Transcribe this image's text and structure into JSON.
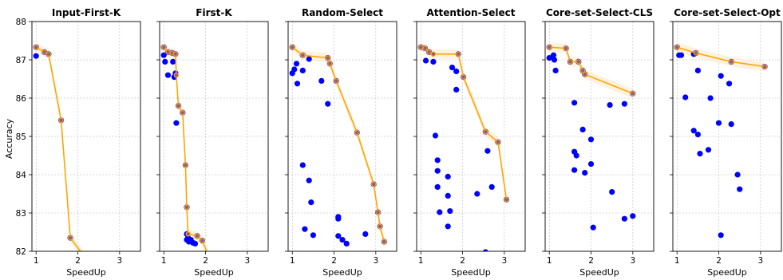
{
  "chart_data": {
    "type": "scatter",
    "ylabel": "Accuracy",
    "xlabel": "SpeedUp",
    "ylim": [
      82,
      88
    ],
    "xlim": [
      0.9,
      3.5
    ],
    "yticks": [
      82,
      83,
      84,
      85,
      86,
      87,
      88
    ],
    "xticks": [
      1,
      2,
      3
    ],
    "grid": true,
    "colors": {
      "points": "#0000ff",
      "frontier": "#ffa500",
      "band": "#fdebd0"
    },
    "panels": [
      {
        "title": "Input-First-K",
        "points": [
          [
            1.0,
            87.33
          ],
          [
            1.0,
            87.1
          ],
          [
            1.2,
            87.2
          ],
          [
            1.3,
            87.15
          ],
          [
            1.6,
            85.42
          ],
          [
            1.82,
            82.35
          ]
        ],
        "frontier": [
          [
            1.0,
            87.33
          ],
          [
            1.2,
            87.2
          ],
          [
            1.3,
            87.15
          ],
          [
            1.6,
            85.42
          ],
          [
            1.82,
            82.35
          ],
          [
            2.2,
            81.8
          ]
        ]
      },
      {
        "title": "First-K",
        "points": [
          [
            1.0,
            87.33
          ],
          [
            1.0,
            87.12
          ],
          [
            1.03,
            86.95
          ],
          [
            1.1,
            87.2
          ],
          [
            1.2,
            87.18
          ],
          [
            1.22,
            86.95
          ],
          [
            1.1,
            86.6
          ],
          [
            1.25,
            86.55
          ],
          [
            1.28,
            86.65
          ],
          [
            1.28,
            87.15
          ],
          [
            1.3,
            85.35
          ],
          [
            1.35,
            85.8
          ],
          [
            1.45,
            85.62
          ],
          [
            1.52,
            84.25
          ],
          [
            1.55,
            83.15
          ],
          [
            1.55,
            82.45
          ],
          [
            1.55,
            82.3
          ],
          [
            1.6,
            82.25
          ],
          [
            1.65,
            82.3
          ],
          [
            1.58,
            82.35
          ],
          [
            1.8,
            82.4
          ],
          [
            1.92,
            82.28
          ],
          [
            1.75,
            82.2
          ],
          [
            1.7,
            82.22
          ]
        ],
        "frontier": [
          [
            1.0,
            87.33
          ],
          [
            1.1,
            87.2
          ],
          [
            1.2,
            87.18
          ],
          [
            1.28,
            87.15
          ],
          [
            1.3,
            86.6
          ],
          [
            1.35,
            85.8
          ],
          [
            1.45,
            85.62
          ],
          [
            1.52,
            84.25
          ],
          [
            1.55,
            83.15
          ],
          [
            1.58,
            82.45
          ],
          [
            1.8,
            82.4
          ],
          [
            1.92,
            82.28
          ],
          [
            2.1,
            81.8
          ]
        ]
      },
      {
        "title": "Random-Select",
        "points": [
          [
            1.0,
            87.33
          ],
          [
            1.0,
            86.65
          ],
          [
            1.05,
            86.75
          ],
          [
            1.1,
            86.9
          ],
          [
            1.12,
            86.38
          ],
          [
            1.25,
            87.12
          ],
          [
            1.25,
            86.72
          ],
          [
            1.4,
            87.02
          ],
          [
            1.7,
            86.45
          ],
          [
            1.85,
            87.05
          ],
          [
            1.85,
            85.85
          ],
          [
            1.9,
            86.9
          ],
          [
            2.05,
            86.45
          ],
          [
            1.25,
            84.25
          ],
          [
            1.4,
            83.85
          ],
          [
            1.45,
            83.28
          ],
          [
            1.3,
            82.58
          ],
          [
            1.5,
            82.42
          ],
          [
            2.1,
            82.85
          ],
          [
            2.1,
            82.9
          ],
          [
            2.1,
            82.4
          ],
          [
            2.2,
            82.3
          ],
          [
            2.3,
            82.2
          ],
          [
            2.75,
            82.45
          ],
          [
            2.55,
            85.1
          ],
          [
            2.95,
            83.75
          ],
          [
            3.05,
            83.02
          ],
          [
            3.1,
            82.65
          ],
          [
            3.2,
            82.25
          ]
        ],
        "frontier": [
          [
            1.0,
            87.33
          ],
          [
            1.25,
            87.12
          ],
          [
            1.85,
            87.05
          ],
          [
            1.9,
            86.9
          ],
          [
            2.05,
            86.45
          ],
          [
            2.55,
            85.1
          ],
          [
            2.95,
            83.75
          ],
          [
            3.05,
            83.02
          ],
          [
            3.1,
            82.65
          ],
          [
            3.2,
            82.25
          ]
        ]
      },
      {
        "title": "Attention-Select",
        "points": [
          [
            1.0,
            87.33
          ],
          [
            1.1,
            87.3
          ],
          [
            1.2,
            87.2
          ],
          [
            1.12,
            86.98
          ],
          [
            1.3,
            86.95
          ],
          [
            1.9,
            87.15
          ],
          [
            1.75,
            86.8
          ],
          [
            1.85,
            86.7
          ],
          [
            2.02,
            86.55
          ],
          [
            1.85,
            86.22
          ],
          [
            1.35,
            85.02
          ],
          [
            1.4,
            84.38
          ],
          [
            1.4,
            84.1
          ],
          [
            1.65,
            83.95
          ],
          [
            1.4,
            83.68
          ],
          [
            1.65,
            83.45
          ],
          [
            1.45,
            83.02
          ],
          [
            1.7,
            83.05
          ],
          [
            1.65,
            82.65
          ],
          [
            2.35,
            83.5
          ],
          [
            2.55,
            85.12
          ],
          [
            2.6,
            84.62
          ],
          [
            2.7,
            83.68
          ],
          [
            2.85,
            84.85
          ],
          [
            3.05,
            83.35
          ],
          [
            2.55,
            81.98
          ]
        ],
        "frontier": [
          [
            1.0,
            87.33
          ],
          [
            1.1,
            87.3
          ],
          [
            1.2,
            87.2
          ],
          [
            1.3,
            87.15
          ],
          [
            1.9,
            87.15
          ],
          [
            2.02,
            86.55
          ],
          [
            2.55,
            85.12
          ],
          [
            2.85,
            84.85
          ],
          [
            3.05,
            83.35
          ]
        ]
      },
      {
        "title": "Core-set-Select-CLS",
        "points": [
          [
            1.0,
            87.33
          ],
          [
            1.0,
            87.05
          ],
          [
            1.1,
            87.12
          ],
          [
            1.12,
            87.0
          ],
          [
            1.15,
            86.72
          ],
          [
            1.4,
            87.3
          ],
          [
            1.5,
            86.95
          ],
          [
            1.7,
            86.95
          ],
          [
            1.8,
            86.72
          ],
          [
            1.85,
            86.62
          ],
          [
            1.6,
            85.88
          ],
          [
            1.8,
            85.18
          ],
          [
            2.0,
            84.92
          ],
          [
            1.6,
            84.6
          ],
          [
            1.65,
            84.5
          ],
          [
            1.6,
            84.12
          ],
          [
            1.85,
            84.05
          ],
          [
            2.0,
            84.28
          ],
          [
            2.5,
            83.55
          ],
          [
            2.45,
            85.82
          ],
          [
            2.8,
            85.85
          ],
          [
            3.0,
            86.12
          ],
          [
            3.0,
            82.92
          ],
          [
            2.8,
            82.85
          ],
          [
            2.05,
            82.62
          ]
        ],
        "frontier": [
          [
            1.0,
            87.33
          ],
          [
            1.4,
            87.3
          ],
          [
            1.5,
            86.95
          ],
          [
            1.7,
            86.95
          ],
          [
            1.8,
            86.72
          ],
          [
            1.85,
            86.62
          ],
          [
            3.0,
            86.12
          ]
        ]
      },
      {
        "title": "Core-set-Select-Opt",
        "points": [
          [
            1.0,
            87.33
          ],
          [
            1.05,
            87.12
          ],
          [
            1.1,
            87.12
          ],
          [
            1.2,
            86.02
          ],
          [
            1.4,
            87.15
          ],
          [
            1.45,
            87.18
          ],
          [
            1.5,
            86.72
          ],
          [
            1.4,
            85.15
          ],
          [
            1.5,
            85.05
          ],
          [
            1.55,
            84.55
          ],
          [
            1.75,
            84.65
          ],
          [
            1.8,
            86.0
          ],
          [
            2.05,
            86.58
          ],
          [
            2.0,
            85.35
          ],
          [
            2.25,
            86.38
          ],
          [
            2.3,
            85.32
          ],
          [
            2.45,
            84.0
          ],
          [
            2.5,
            83.62
          ],
          [
            2.05,
            82.42
          ],
          [
            2.3,
            86.95
          ],
          [
            3.1,
            86.82
          ]
        ],
        "frontier": [
          [
            1.0,
            87.33
          ],
          [
            1.45,
            87.18
          ],
          [
            2.3,
            86.95
          ],
          [
            3.1,
            86.82
          ]
        ]
      }
    ]
  }
}
